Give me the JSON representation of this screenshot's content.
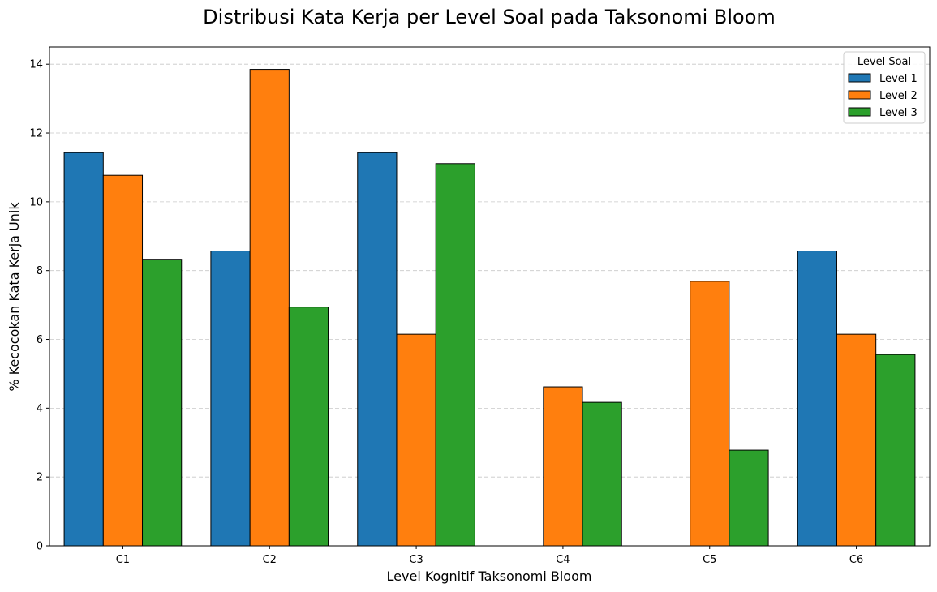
{
  "chart_data": {
    "type": "bar",
    "title": "Distribusi Kata Kerja per Level Soal pada Taksonomi Bloom",
    "xlabel": "Level Kognitif Taksonomi Bloom",
    "ylabel": "% Kecocokan Kata Kerja Unik",
    "categories": [
      "C1",
      "C2",
      "C3",
      "C4",
      "C5",
      "C6"
    ],
    "series": [
      {
        "name": "Level 1",
        "color": "#1f77b4",
        "values": [
          11.43,
          8.57,
          11.43,
          0,
          0,
          8.57
        ]
      },
      {
        "name": "Level 2",
        "color": "#ff7f0e",
        "values": [
          10.77,
          13.85,
          6.15,
          4.62,
          7.69,
          6.15
        ]
      },
      {
        "name": "Level 3",
        "color": "#2ca02c",
        "values": [
          8.33,
          6.94,
          11.11,
          4.17,
          2.78,
          5.56
        ]
      }
    ],
    "ylim": [
      0,
      14.5
    ],
    "yticks": [
      0,
      2,
      4,
      6,
      8,
      10,
      12,
      14
    ],
    "grid": "y-dashed",
    "legend": {
      "title": "Level Soal",
      "placement": "top-right"
    }
  }
}
